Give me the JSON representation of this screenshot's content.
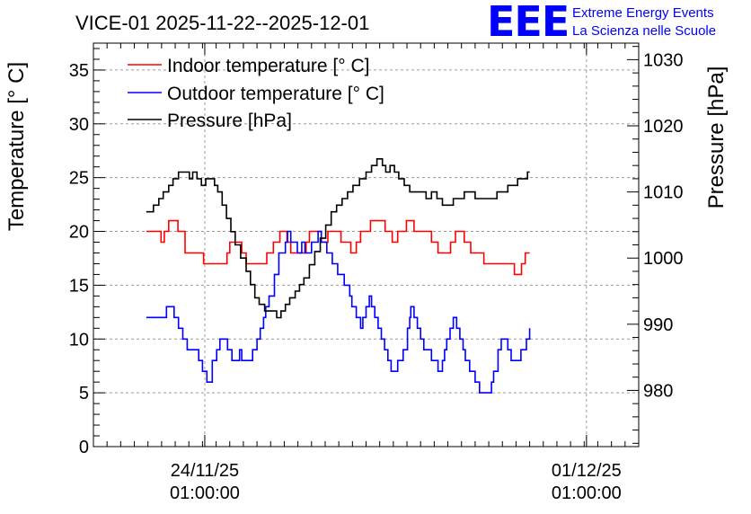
{
  "header": {
    "title": "VICE-01 2025-11-22--2025-12-01",
    "logo_text": "EEE",
    "logo_line1": "Extreme Energy Events",
    "logo_line2": "La Scienza nelle Scuole"
  },
  "colors": {
    "indoor": "#ff0000",
    "outdoor": "#0000ff",
    "pressure": "#000000",
    "brand": "#0000ff"
  },
  "chart_data": {
    "type": "line",
    "title": "VICE-01 2025-11-22--2025-12-01",
    "xlabel": "",
    "ylabel": "Temperature [° C]",
    "ylabel_right": "Pressure [hPa]",
    "x_unit": "days since 2025-11-22 00:00",
    "xlim": [
      0.0,
      10.0
    ],
    "ylim": [
      0,
      37.5
    ],
    "ylim_right": [
      971.5,
      1032.5
    ],
    "grid": true,
    "legend": "top-left",
    "x_ticks": [
      {
        "x": 2.042,
        "label_line1": "24/11/25",
        "label_line2": "01:00:00"
      },
      {
        "x": 9.042,
        "label_line1": "01/12/25",
        "label_line2": "01:00:00"
      }
    ],
    "y_ticks_left": [
      0,
      5,
      10,
      15,
      20,
      25,
      30,
      35
    ],
    "y_ticks_right": [
      980,
      990,
      1000,
      1010,
      1020,
      1030
    ],
    "series": [
      {
        "name": "Indoor temperature [° C]",
        "axis": "left",
        "color": "#ff0000",
        "points": [
          [
            0.97,
            20
          ],
          [
            1.18,
            20
          ],
          [
            1.24,
            19
          ],
          [
            1.3,
            20
          ],
          [
            1.38,
            21
          ],
          [
            1.55,
            20
          ],
          [
            1.68,
            18
          ],
          [
            1.9,
            18
          ],
          [
            2.02,
            17
          ],
          [
            2.25,
            17
          ],
          [
            2.45,
            18
          ],
          [
            2.5,
            19
          ],
          [
            2.6,
            19
          ],
          [
            2.72,
            18
          ],
          [
            2.8,
            17
          ],
          [
            3.0,
            17
          ],
          [
            3.1,
            17
          ],
          [
            3.18,
            18
          ],
          [
            3.3,
            19
          ],
          [
            3.42,
            20
          ],
          [
            3.55,
            19
          ],
          [
            3.62,
            18
          ],
          [
            3.78,
            18
          ],
          [
            3.9,
            19
          ],
          [
            3.96,
            20
          ],
          [
            4.12,
            20
          ],
          [
            4.18,
            19
          ],
          [
            4.3,
            20
          ],
          [
            4.44,
            20
          ],
          [
            4.54,
            19
          ],
          [
            4.72,
            18
          ],
          [
            4.82,
            19
          ],
          [
            4.9,
            20
          ],
          [
            5.0,
            20
          ],
          [
            5.08,
            21
          ],
          [
            5.3,
            21
          ],
          [
            5.35,
            20
          ],
          [
            5.48,
            19
          ],
          [
            5.58,
            20
          ],
          [
            5.68,
            20
          ],
          [
            5.74,
            21
          ],
          [
            5.88,
            20
          ],
          [
            6.0,
            20
          ],
          [
            6.1,
            20
          ],
          [
            6.2,
            19
          ],
          [
            6.32,
            18
          ],
          [
            6.45,
            18
          ],
          [
            6.55,
            19
          ],
          [
            6.64,
            20
          ],
          [
            6.8,
            19
          ],
          [
            6.92,
            18
          ],
          [
            7.08,
            18
          ],
          [
            7.16,
            17
          ],
          [
            7.5,
            17
          ],
          [
            7.6,
            17
          ],
          [
            7.72,
            16
          ],
          [
            7.85,
            17
          ],
          [
            7.92,
            18
          ],
          [
            8.0,
            18
          ]
        ]
      },
      {
        "name": "Outdoor temperature [° C]",
        "axis": "left",
        "color": "#0000ff",
        "points": [
          [
            0.97,
            12
          ],
          [
            1.3,
            12
          ],
          [
            1.34,
            13
          ],
          [
            1.44,
            13
          ],
          [
            1.48,
            12
          ],
          [
            1.56,
            11
          ],
          [
            1.64,
            10
          ],
          [
            1.72,
            9
          ],
          [
            1.88,
            9
          ],
          [
            1.93,
            8
          ],
          [
            2.0,
            7
          ],
          [
            2.08,
            6
          ],
          [
            2.12,
            6
          ],
          [
            2.18,
            8
          ],
          [
            2.26,
            9
          ],
          [
            2.32,
            10
          ],
          [
            2.4,
            10
          ],
          [
            2.46,
            9
          ],
          [
            2.54,
            8
          ],
          [
            2.6,
            8
          ],
          [
            2.68,
            9
          ],
          [
            2.72,
            8
          ],
          [
            2.86,
            8
          ],
          [
            2.92,
            9
          ],
          [
            3.0,
            10
          ],
          [
            3.06,
            11
          ],
          [
            3.12,
            12
          ],
          [
            3.16,
            13
          ],
          [
            3.22,
            14
          ],
          [
            3.32,
            16
          ],
          [
            3.4,
            18
          ],
          [
            3.46,
            18
          ],
          [
            3.52,
            19
          ],
          [
            3.56,
            20
          ],
          [
            3.62,
            19
          ],
          [
            3.7,
            19
          ],
          [
            3.74,
            18
          ],
          [
            3.82,
            19
          ],
          [
            3.88,
            18
          ],
          [
            3.94,
            18
          ],
          [
            4.0,
            19
          ],
          [
            4.08,
            19
          ],
          [
            4.12,
            20
          ],
          [
            4.18,
            19
          ],
          [
            4.28,
            18
          ],
          [
            4.38,
            17
          ],
          [
            4.48,
            16
          ],
          [
            4.6,
            15
          ],
          [
            4.7,
            14
          ],
          [
            4.74,
            13
          ],
          [
            4.82,
            12
          ],
          [
            4.9,
            11
          ],
          [
            4.94,
            12
          ],
          [
            5.0,
            13
          ],
          [
            5.06,
            14
          ],
          [
            5.1,
            13
          ],
          [
            5.16,
            12
          ],
          [
            5.22,
            11
          ],
          [
            5.28,
            10
          ],
          [
            5.34,
            9
          ],
          [
            5.4,
            8
          ],
          [
            5.46,
            7
          ],
          [
            5.54,
            7
          ],
          [
            5.58,
            8
          ],
          [
            5.64,
            8
          ],
          [
            5.68,
            9
          ],
          [
            5.76,
            11
          ],
          [
            5.8,
            12
          ],
          [
            5.82,
            13
          ],
          [
            5.88,
            12
          ],
          [
            5.94,
            11
          ],
          [
            6.0,
            10
          ],
          [
            6.06,
            9
          ],
          [
            6.14,
            9
          ],
          [
            6.2,
            8
          ],
          [
            6.26,
            8
          ],
          [
            6.32,
            7
          ],
          [
            6.4,
            8
          ],
          [
            6.44,
            9
          ],
          [
            6.48,
            10
          ],
          [
            6.54,
            11
          ],
          [
            6.6,
            12
          ],
          [
            6.66,
            11
          ],
          [
            6.72,
            10
          ],
          [
            6.78,
            9
          ],
          [
            6.82,
            8
          ],
          [
            6.9,
            7
          ],
          [
            7.0,
            6
          ],
          [
            7.08,
            5
          ],
          [
            7.26,
            5
          ],
          [
            7.3,
            6
          ],
          [
            7.34,
            7
          ],
          [
            7.42,
            9
          ],
          [
            7.48,
            10
          ],
          [
            7.56,
            10
          ],
          [
            7.6,
            9
          ],
          [
            7.66,
            8
          ],
          [
            7.8,
            8
          ],
          [
            7.84,
            9
          ],
          [
            7.9,
            9
          ],
          [
            7.94,
            10
          ],
          [
            8.0,
            11
          ]
        ]
      },
      {
        "name": "Pressure [hPa]",
        "axis": "right",
        "color": "#000000",
        "points": [
          [
            0.97,
            1007
          ],
          [
            1.04,
            1007
          ],
          [
            1.1,
            1008
          ],
          [
            1.2,
            1009
          ],
          [
            1.28,
            1010
          ],
          [
            1.38,
            1011
          ],
          [
            1.46,
            1012
          ],
          [
            1.56,
            1013
          ],
          [
            1.7,
            1013
          ],
          [
            1.76,
            1012
          ],
          [
            1.82,
            1013
          ],
          [
            1.9,
            1012
          ],
          [
            1.98,
            1011
          ],
          [
            2.06,
            1012
          ],
          [
            2.16,
            1012
          ],
          [
            2.22,
            1011
          ],
          [
            2.28,
            1010
          ],
          [
            2.36,
            1008
          ],
          [
            2.44,
            1006
          ],
          [
            2.52,
            1004
          ],
          [
            2.6,
            1002
          ],
          [
            2.7,
            1000
          ],
          [
            2.8,
            998
          ],
          [
            2.88,
            996
          ],
          [
            2.96,
            994
          ],
          [
            3.04,
            993
          ],
          [
            3.14,
            992
          ],
          [
            3.3,
            992
          ],
          [
            3.36,
            991
          ],
          [
            3.44,
            992
          ],
          [
            3.52,
            993
          ],
          [
            3.6,
            994
          ],
          [
            3.7,
            995
          ],
          [
            3.78,
            996
          ],
          [
            3.86,
            997
          ],
          [
            3.96,
            999
          ],
          [
            4.06,
            1001
          ],
          [
            4.16,
            1003
          ],
          [
            4.26,
            1005
          ],
          [
            4.36,
            1007
          ],
          [
            4.46,
            1008
          ],
          [
            4.56,
            1009
          ],
          [
            4.66,
            1010
          ],
          [
            4.76,
            1011
          ],
          [
            4.88,
            1012
          ],
          [
            5.0,
            1013
          ],
          [
            5.1,
            1014
          ],
          [
            5.2,
            1015
          ],
          [
            5.3,
            1014
          ],
          [
            5.36,
            1013
          ],
          [
            5.44,
            1014
          ],
          [
            5.52,
            1013
          ],
          [
            5.6,
            1012
          ],
          [
            5.7,
            1011
          ],
          [
            5.8,
            1010
          ],
          [
            5.9,
            1010
          ],
          [
            6.0,
            1010
          ],
          [
            6.1,
            1009
          ],
          [
            6.2,
            1010
          ],
          [
            6.3,
            1009
          ],
          [
            6.4,
            1008
          ],
          [
            6.5,
            1008
          ],
          [
            6.6,
            1009
          ],
          [
            6.7,
            1009
          ],
          [
            6.8,
            1010
          ],
          [
            6.9,
            1010
          ],
          [
            7.0,
            1009
          ],
          [
            7.1,
            1009
          ],
          [
            7.3,
            1009
          ],
          [
            7.4,
            1010
          ],
          [
            7.5,
            1010
          ],
          [
            7.6,
            1011
          ],
          [
            7.7,
            1011
          ],
          [
            7.78,
            1012
          ],
          [
            7.9,
            1012
          ],
          [
            7.96,
            1013
          ],
          [
            8.0,
            1013
          ]
        ]
      }
    ]
  }
}
